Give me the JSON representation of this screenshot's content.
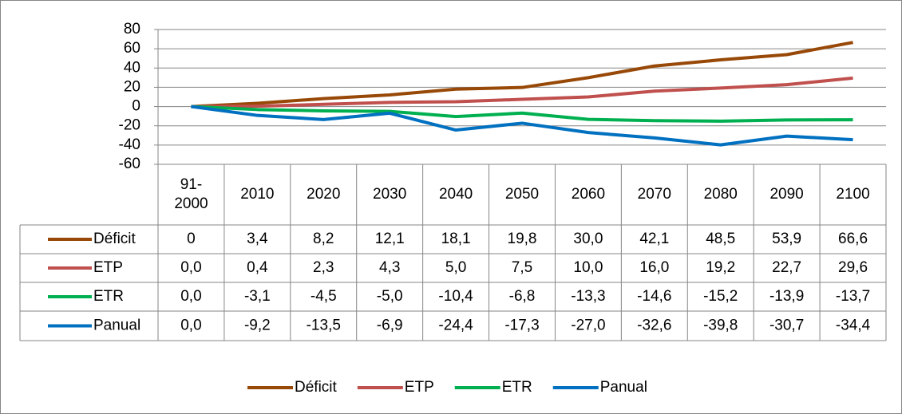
{
  "chart_data": {
    "type": "line",
    "categories": [
      "91-2000",
      "2010",
      "2020",
      "2030",
      "2040",
      "2050",
      "2060",
      "2070",
      "2080",
      "2090",
      "2100"
    ],
    "series": [
      {
        "name": "Déficit",
        "color": "#984807",
        "values": [
          0,
          3.4,
          8.2,
          12.1,
          18.1,
          19.8,
          30.0,
          42.1,
          48.5,
          53.9,
          66.6
        ],
        "value_labels": [
          "0",
          "3,4",
          "8,2",
          "12,1",
          "18,1",
          "19,8",
          "30,0",
          "42,1",
          "48,5",
          "53,9",
          "66,6"
        ]
      },
      {
        "name": "ETP",
        "color": "#c0504d",
        "values": [
          0.0,
          0.4,
          2.3,
          4.3,
          5.0,
          7.5,
          10.0,
          16.0,
          19.2,
          22.7,
          29.6
        ],
        "value_labels": [
          "0,0",
          "0,4",
          "2,3",
          "4,3",
          "5,0",
          "7,5",
          "10,0",
          "16,0",
          "19,2",
          "22,7",
          "29,6"
        ]
      },
      {
        "name": "ETR",
        "color": "#00b050",
        "values": [
          0.0,
          -3.1,
          -4.5,
          -5.0,
          -10.4,
          -6.8,
          -13.3,
          -14.6,
          -15.2,
          -13.9,
          -13.7
        ],
        "value_labels": [
          "0,0",
          "-3,1",
          "-4,5",
          "-5,0",
          "-10,4",
          "-6,8",
          "-13,3",
          "-14,6",
          "-15,2",
          "-13,9",
          "-13,7"
        ]
      },
      {
        "name": "Panual",
        "color": "#0070c0",
        "values": [
          0.0,
          -9.2,
          -13.5,
          -6.9,
          -24.4,
          -17.3,
          -27.0,
          -32.6,
          -39.8,
          -30.7,
          -34.4
        ],
        "value_labels": [
          "0,0",
          "-9,2",
          "-13,5",
          "-6,9",
          "-24,4",
          "-17,3",
          "-27,0",
          "-32,6",
          "-39,8",
          "-30,7",
          "-34,4"
        ]
      }
    ],
    "ylim": [
      -60,
      80
    ],
    "yticks": [
      -60,
      -40,
      -20,
      0,
      20,
      40,
      60,
      80
    ],
    "grid": true,
    "legend": "bottom"
  }
}
